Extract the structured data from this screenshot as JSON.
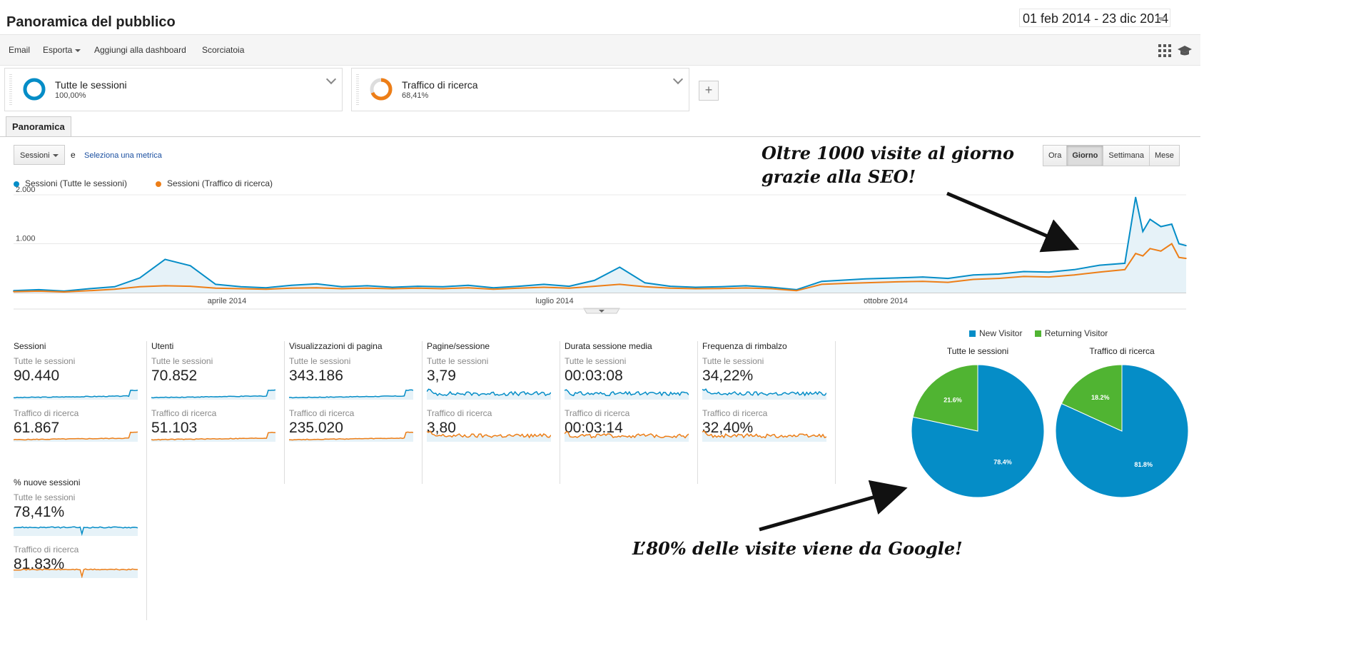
{
  "header": {
    "title": "Panoramica del pubblico",
    "date_range": "01 feb 2014 - 23 dic 2014"
  },
  "toolbar": {
    "email": "Email",
    "export": "Esporta",
    "add_dashboard": "Aggiungi alla dashboard",
    "shortcut": "Scorciatoia",
    "icons": [
      "grid-icon",
      "graduation-cap-icon"
    ]
  },
  "segments": [
    {
      "name": "Tutte le sessioni",
      "percent": "100,00%",
      "fraction": 1.0,
      "color": "#058dc7"
    },
    {
      "name": "Traffico di ricerca",
      "percent": "68,41%",
      "fraction": 0.6841,
      "color": "#ed7e17"
    }
  ],
  "tabs": {
    "overview": "Panoramica"
  },
  "metric_selector": {
    "selected": "Sessioni",
    "conjunction": "e",
    "link": "Seleziona una metrica"
  },
  "periods": [
    {
      "label": "Ora",
      "active": false
    },
    {
      "label": "Giorno",
      "active": true
    },
    {
      "label": "Settimana",
      "active": false
    },
    {
      "label": "Mese",
      "active": false
    }
  ],
  "chart_data": [
    {
      "type": "line",
      "series": [
        {
          "name": "Sessioni (Tutte le sessioni)",
          "color": "#058dc7",
          "x": [
            "01 feb",
            "08 feb",
            "15 feb",
            "22 feb",
            "01 mar",
            "08 mar",
            "15 mar",
            "22 mar",
            "29 mar",
            "05 apr",
            "12 apr",
            "19 apr",
            "26 apr",
            "03 mag",
            "10 mag",
            "17 mag",
            "24 mag",
            "31 mag",
            "07 giu",
            "14 giu",
            "21 giu",
            "28 giu",
            "05 lug",
            "12 lug",
            "19 lug",
            "26 lug",
            "02 ago",
            "09 ago",
            "16 ago",
            "23 ago",
            "30 ago",
            "06 set",
            "13 set",
            "20 set",
            "27 set",
            "04 ott",
            "11 ott",
            "18 ott",
            "25 ott",
            "01 nov",
            "08 nov",
            "15 nov",
            "22 nov",
            "29 nov",
            "06 dic",
            "09 dic",
            "11 dic",
            "13 dic",
            "16 dic",
            "19 dic",
            "21 dic",
            "23 dic"
          ],
          "values": [
            40,
            60,
            30,
            80,
            120,
            300,
            680,
            550,
            170,
            120,
            100,
            150,
            180,
            120,
            140,
            110,
            130,
            120,
            150,
            100,
            130,
            170,
            130,
            250,
            520,
            200,
            130,
            110,
            120,
            140,
            110,
            60,
            230,
            260,
            280,
            300,
            320,
            290,
            360,
            380,
            430,
            420,
            470,
            560,
            600,
            1950,
            1250,
            1500,
            1350,
            1400,
            1000,
            960
          ]
        },
        {
          "name": "Sessioni (Traffico di ricerca)",
          "color": "#ed7e17",
          "x": [
            "01 feb",
            "08 feb",
            "15 feb",
            "22 feb",
            "01 mar",
            "08 mar",
            "15 mar",
            "22 mar",
            "29 mar",
            "05 apr",
            "12 apr",
            "19 apr",
            "26 apr",
            "03 mag",
            "10 mag",
            "17 mag",
            "24 mag",
            "31 mag",
            "07 giu",
            "14 giu",
            "21 giu",
            "28 giu",
            "05 lug",
            "12 lug",
            "19 lug",
            "26 lug",
            "02 ago",
            "09 ago",
            "16 ago",
            "23 ago",
            "30 ago",
            "06 set",
            "13 set",
            "20 set",
            "27 set",
            "04 ott",
            "11 ott",
            "18 ott",
            "25 ott",
            "01 nov",
            "08 nov",
            "15 nov",
            "22 nov",
            "29 nov",
            "06 dic",
            "09 dic",
            "11 dic",
            "13 dic",
            "16 dic",
            "19 dic",
            "21 dic",
            "23 dic"
          ],
          "values": [
            20,
            30,
            15,
            40,
            70,
            120,
            140,
            130,
            90,
            80,
            70,
            90,
            100,
            80,
            90,
            80,
            90,
            80,
            100,
            70,
            90,
            110,
            90,
            130,
            170,
            120,
            90,
            80,
            85,
            95,
            80,
            40,
            170,
            190,
            200,
            220,
            230,
            210,
            270,
            290,
            330,
            320,
            360,
            420,
            470,
            800,
            750,
            900,
            850,
            1000,
            720,
            700
          ]
        }
      ],
      "x_tick_labels": [
        "aprile 2014",
        "luglio 2014",
        "ottobre 2014"
      ],
      "y_tick_labels": [
        "1.000",
        "2.000"
      ],
      "ylim": [
        0,
        2000
      ],
      "legend": "top-left",
      "grid": true
    },
    {
      "type": "pie",
      "title": "Tutte le sessioni",
      "categories": [
        "New Visitor",
        "Returning Visitor"
      ],
      "values": [
        78.4,
        21.6
      ],
      "labels": [
        "78.4%",
        "21.6%"
      ],
      "colors": [
        "#058dc7",
        "#50b432"
      ],
      "legend": "top"
    },
    {
      "type": "pie",
      "title": "Traffico di ricerca",
      "categories": [
        "New Visitor",
        "Returning Visitor"
      ],
      "values": [
        81.8,
        18.2
      ],
      "labels": [
        "81.8%",
        "18.2%"
      ],
      "colors": [
        "#058dc7",
        "#50b432"
      ],
      "legend": "top"
    }
  ],
  "metrics": [
    {
      "title": "Sessioni",
      "seg1_label": "Tutte le sessioni",
      "seg1_value": "90.440",
      "seg2_label": "Traffico di ricerca",
      "seg2_value": "61.867",
      "trend": "rising"
    },
    {
      "title": "Utenti",
      "seg1_label": "Tutte le sessioni",
      "seg1_value": "70.852",
      "seg2_label": "Traffico di ricerca",
      "seg2_value": "51.103",
      "trend": "rising"
    },
    {
      "title": "Visualizzazioni di pagina",
      "seg1_label": "Tutte le sessioni",
      "seg1_value": "343.186",
      "seg2_label": "Traffico di ricerca",
      "seg2_value": "235.020",
      "trend": "rising"
    },
    {
      "title": "Pagine/sessione",
      "seg1_label": "Tutte le sessioni",
      "seg1_value": "3,79",
      "seg2_label": "Traffico di ricerca",
      "seg2_value": "3,80",
      "trend": "flat"
    },
    {
      "title": "Durata sessione media",
      "seg1_label": "Tutte le sessioni",
      "seg1_value": "00:03:08",
      "seg2_label": "Traffico di ricerca",
      "seg2_value": "00:03:14",
      "trend": "flat"
    },
    {
      "title": "Frequenza di rimbalzo",
      "seg1_label": "Tutte le sessioni",
      "seg1_value": "34,22%",
      "seg2_label": "Traffico di ricerca",
      "seg2_value": "32,40%",
      "trend": "flat"
    },
    {
      "title": "% nuove sessioni",
      "seg1_label": "Tutte le sessioni",
      "seg1_value": "78,41%",
      "seg2_label": "Traffico di ricerca",
      "seg2_value": "81,83%",
      "trend": "high"
    }
  ],
  "annotations": {
    "top_line1": "Oltre 1000 visite al giorno",
    "top_line2": "grazie alla SEO!",
    "bottom": "L’80% delle visite viene da Google!"
  },
  "colors": {
    "blue": "#058dc7",
    "orange": "#ed7e17",
    "green": "#50b432",
    "link": "#1a4fa0"
  }
}
